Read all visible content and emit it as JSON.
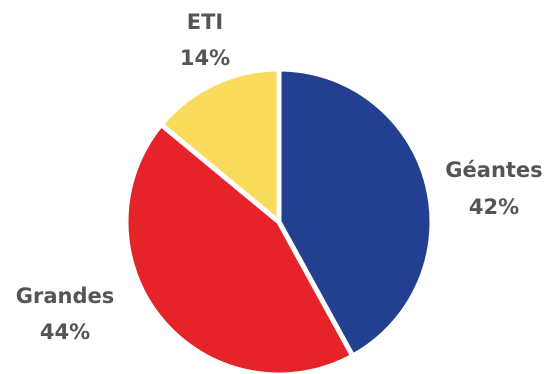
{
  "chart_data": {
    "type": "pie",
    "slices": [
      {
        "label": "Géantes",
        "value": 42,
        "value_label": "42%",
        "color": "#233f8f"
      },
      {
        "label": "Grandes",
        "value": 44,
        "value_label": "44%",
        "color": "#e52329"
      },
      {
        "label": "ETI",
        "value": 14,
        "value_label": "14%",
        "color": "#f9dc5c"
      }
    ],
    "start": "12 o'clock",
    "direction": "clockwise",
    "separator_color": "#ffffff",
    "label_color": "#555555",
    "legend": "none"
  }
}
